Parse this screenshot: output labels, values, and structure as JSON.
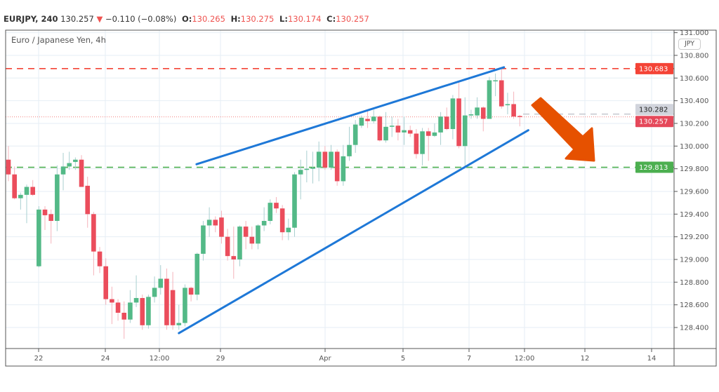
{
  "header": {
    "symbol": "EURJPY, 240",
    "last": "130.257",
    "change": "−0.110 (−0.08%)",
    "o_label": "O:",
    "o": "130.265",
    "h_label": "H:",
    "h": "130.275",
    "l_label": "L:",
    "l": "130.174",
    "c_label": "C:",
    "c": "130.257",
    "down_icon": "triangle-down-icon"
  },
  "legend": "Euro / Japanese Yen, 4h",
  "currency_badge": "JPY",
  "colors": {
    "up": "#53b987",
    "down": "#eb4d5c",
    "trendline": "#1e78d7",
    "arrow": "#e65100",
    "resistance": "#f44336",
    "support": "#4caf50"
  },
  "chart_data": {
    "type": "candlestick",
    "ylim": [
      128.2,
      131.0
    ],
    "y_ticks": [
      "131.000",
      "130.800",
      "130.600",
      "130.400",
      "130.200",
      "130.000",
      "129.800",
      "129.600",
      "129.400",
      "129.200",
      "129.000",
      "128.800",
      "128.600",
      "128.400"
    ],
    "x_ticks": [
      "22",
      "24",
      "12:00",
      "29",
      "Apr",
      "5",
      "7",
      "12:00",
      "12",
      "14"
    ],
    "grid": true,
    "ohlc": [
      [
        129.88,
        130.0,
        129.69,
        129.75
      ],
      [
        129.75,
        129.82,
        129.53,
        129.54
      ],
      [
        129.54,
        129.59,
        129.44,
        129.57
      ],
      [
        129.57,
        129.66,
        129.32,
        129.64
      ],
      [
        129.64,
        129.7,
        129.56,
        129.57
      ],
      [
        128.94,
        129.47,
        128.93,
        129.44
      ],
      [
        129.44,
        129.47,
        129.26,
        129.39
      ],
      [
        129.4,
        129.44,
        129.14,
        129.34
      ],
      [
        129.34,
        129.83,
        129.25,
        129.75
      ],
      [
        129.75,
        129.94,
        129.61,
        129.82
      ],
      [
        129.82,
        129.95,
        129.79,
        129.85
      ],
      [
        129.86,
        129.9,
        129.79,
        129.88
      ],
      [
        129.88,
        129.92,
        129.64,
        129.64
      ],
      [
        129.65,
        129.73,
        129.28,
        129.4
      ],
      [
        129.4,
        129.42,
        128.86,
        129.07
      ],
      [
        129.07,
        129.11,
        128.88,
        128.94
      ],
      [
        128.94,
        129.01,
        128.6,
        128.65
      ],
      [
        128.65,
        128.76,
        128.43,
        128.62
      ],
      [
        128.62,
        128.65,
        128.46,
        128.53
      ],
      [
        128.53,
        128.63,
        128.3,
        128.47
      ],
      [
        128.47,
        128.73,
        128.44,
        128.62
      ],
      [
        128.62,
        128.86,
        128.58,
        128.66
      ],
      [
        128.66,
        128.69,
        128.38,
        128.42
      ],
      [
        128.42,
        128.69,
        128.39,
        128.67
      ],
      [
        128.67,
        128.85,
        128.62,
        128.75
      ],
      [
        128.75,
        128.95,
        128.69,
        128.83
      ],
      [
        128.83,
        128.92,
        128.38,
        128.42
      ],
      [
        128.73,
        128.89,
        128.38,
        128.42
      ],
      [
        128.42,
        128.6,
        128.38,
        128.44
      ],
      [
        128.44,
        128.78,
        128.41,
        128.75
      ],
      [
        128.75,
        128.76,
        128.63,
        128.69
      ],
      [
        128.69,
        129.06,
        128.64,
        129.05
      ],
      [
        129.05,
        129.34,
        128.99,
        129.3
      ],
      [
        129.3,
        129.46,
        129.2,
        129.35
      ],
      [
        129.35,
        129.38,
        129.24,
        129.3
      ],
      [
        129.37,
        129.43,
        129.14,
        129.2
      ],
      [
        129.2,
        129.27,
        128.99,
        129.03
      ],
      [
        129.03,
        129.29,
        128.83,
        129.0
      ],
      [
        129.0,
        129.3,
        128.94,
        129.29
      ],
      [
        129.29,
        129.34,
        129.09,
        129.2
      ],
      [
        129.2,
        129.29,
        129.09,
        129.14
      ],
      [
        129.14,
        129.31,
        129.09,
        129.3
      ],
      [
        129.3,
        129.46,
        129.25,
        129.34
      ],
      [
        129.34,
        129.53,
        129.31,
        129.5
      ],
      [
        129.5,
        129.55,
        129.41,
        129.45
      ],
      [
        129.45,
        129.48,
        129.17,
        129.24
      ],
      [
        129.24,
        129.36,
        129.17,
        129.28
      ],
      [
        129.28,
        129.77,
        129.2,
        129.75
      ],
      [
        129.75,
        129.88,
        129.53,
        129.79
      ],
      [
        129.79,
        129.96,
        129.68,
        129.8
      ],
      [
        129.8,
        129.95,
        129.67,
        129.81
      ],
      [
        129.81,
        130.04,
        129.69,
        129.95
      ],
      [
        129.95,
        130.0,
        129.79,
        129.81
      ],
      [
        129.81,
        130.01,
        129.79,
        129.95
      ],
      [
        129.95,
        129.97,
        129.65,
        129.69
      ],
      [
        129.69,
        130.01,
        129.65,
        129.91
      ],
      [
        129.91,
        130.17,
        129.87,
        130.01
      ],
      [
        130.01,
        130.23,
        129.94,
        130.19
      ],
      [
        130.18,
        130.27,
        130.16,
        130.25
      ],
      [
        130.24,
        130.31,
        130.16,
        130.22
      ],
      [
        130.22,
        130.32,
        130.2,
        130.26
      ],
      [
        130.26,
        130.27,
        130.04,
        130.05
      ],
      [
        130.05,
        130.3,
        130.03,
        130.17
      ],
      [
        130.17,
        130.26,
        130.08,
        130.18
      ],
      [
        130.18,
        130.24,
        130.05,
        130.12
      ],
      [
        130.12,
        130.26,
        130.01,
        130.14
      ],
      [
        130.14,
        130.18,
        130.08,
        130.11
      ],
      [
        130.11,
        130.15,
        129.89,
        129.93
      ],
      [
        129.93,
        130.16,
        129.83,
        130.13
      ],
      [
        130.13,
        130.16,
        129.87,
        130.09
      ],
      [
        130.09,
        130.2,
        130.08,
        130.12
      ],
      [
        130.12,
        130.3,
        130.01,
        130.26
      ],
      [
        130.26,
        130.34,
        130.14,
        130.15
      ],
      [
        130.15,
        130.45,
        130.06,
        130.42
      ],
      [
        130.42,
        130.56,
        129.98,
        130.0
      ],
      [
        130.0,
        130.43,
        129.82,
        130.27
      ],
      [
        130.27,
        130.32,
        130.24,
        130.28
      ],
      [
        130.27,
        130.43,
        130.24,
        130.34
      ],
      [
        130.34,
        130.35,
        130.13,
        130.24
      ],
      [
        130.24,
        130.61,
        130.24,
        130.58
      ],
      [
        130.58,
        130.64,
        130.44,
        130.58
      ],
      [
        130.58,
        130.68,
        130.33,
        130.35
      ],
      [
        130.36,
        130.47,
        130.28,
        130.37
      ],
      [
        130.37,
        130.48,
        130.24,
        130.26
      ],
      [
        130.265,
        130.275,
        130.174,
        130.257
      ]
    ],
    "levels": [
      {
        "price": 130.683,
        "label": "130.683",
        "style": "dashed",
        "color": "#f44336"
      },
      {
        "price": 129.813,
        "label": "129.813",
        "style": "dashed",
        "color": "#4caf50"
      }
    ],
    "current_price": {
      "price": 130.257,
      "label": "130.257",
      "color": "#e5485a"
    },
    "marker_price": {
      "price": 130.282,
      "label": "130.282"
    },
    "trendlines": [
      {
        "from_bar": 30.9,
        "from_price": 129.84,
        "to_bar": 81.4,
        "to_price": 130.695
      },
      {
        "from_bar": 28.0,
        "from_price": 128.35,
        "to_bar": 85.4,
        "to_price": 130.14
      }
    ]
  }
}
